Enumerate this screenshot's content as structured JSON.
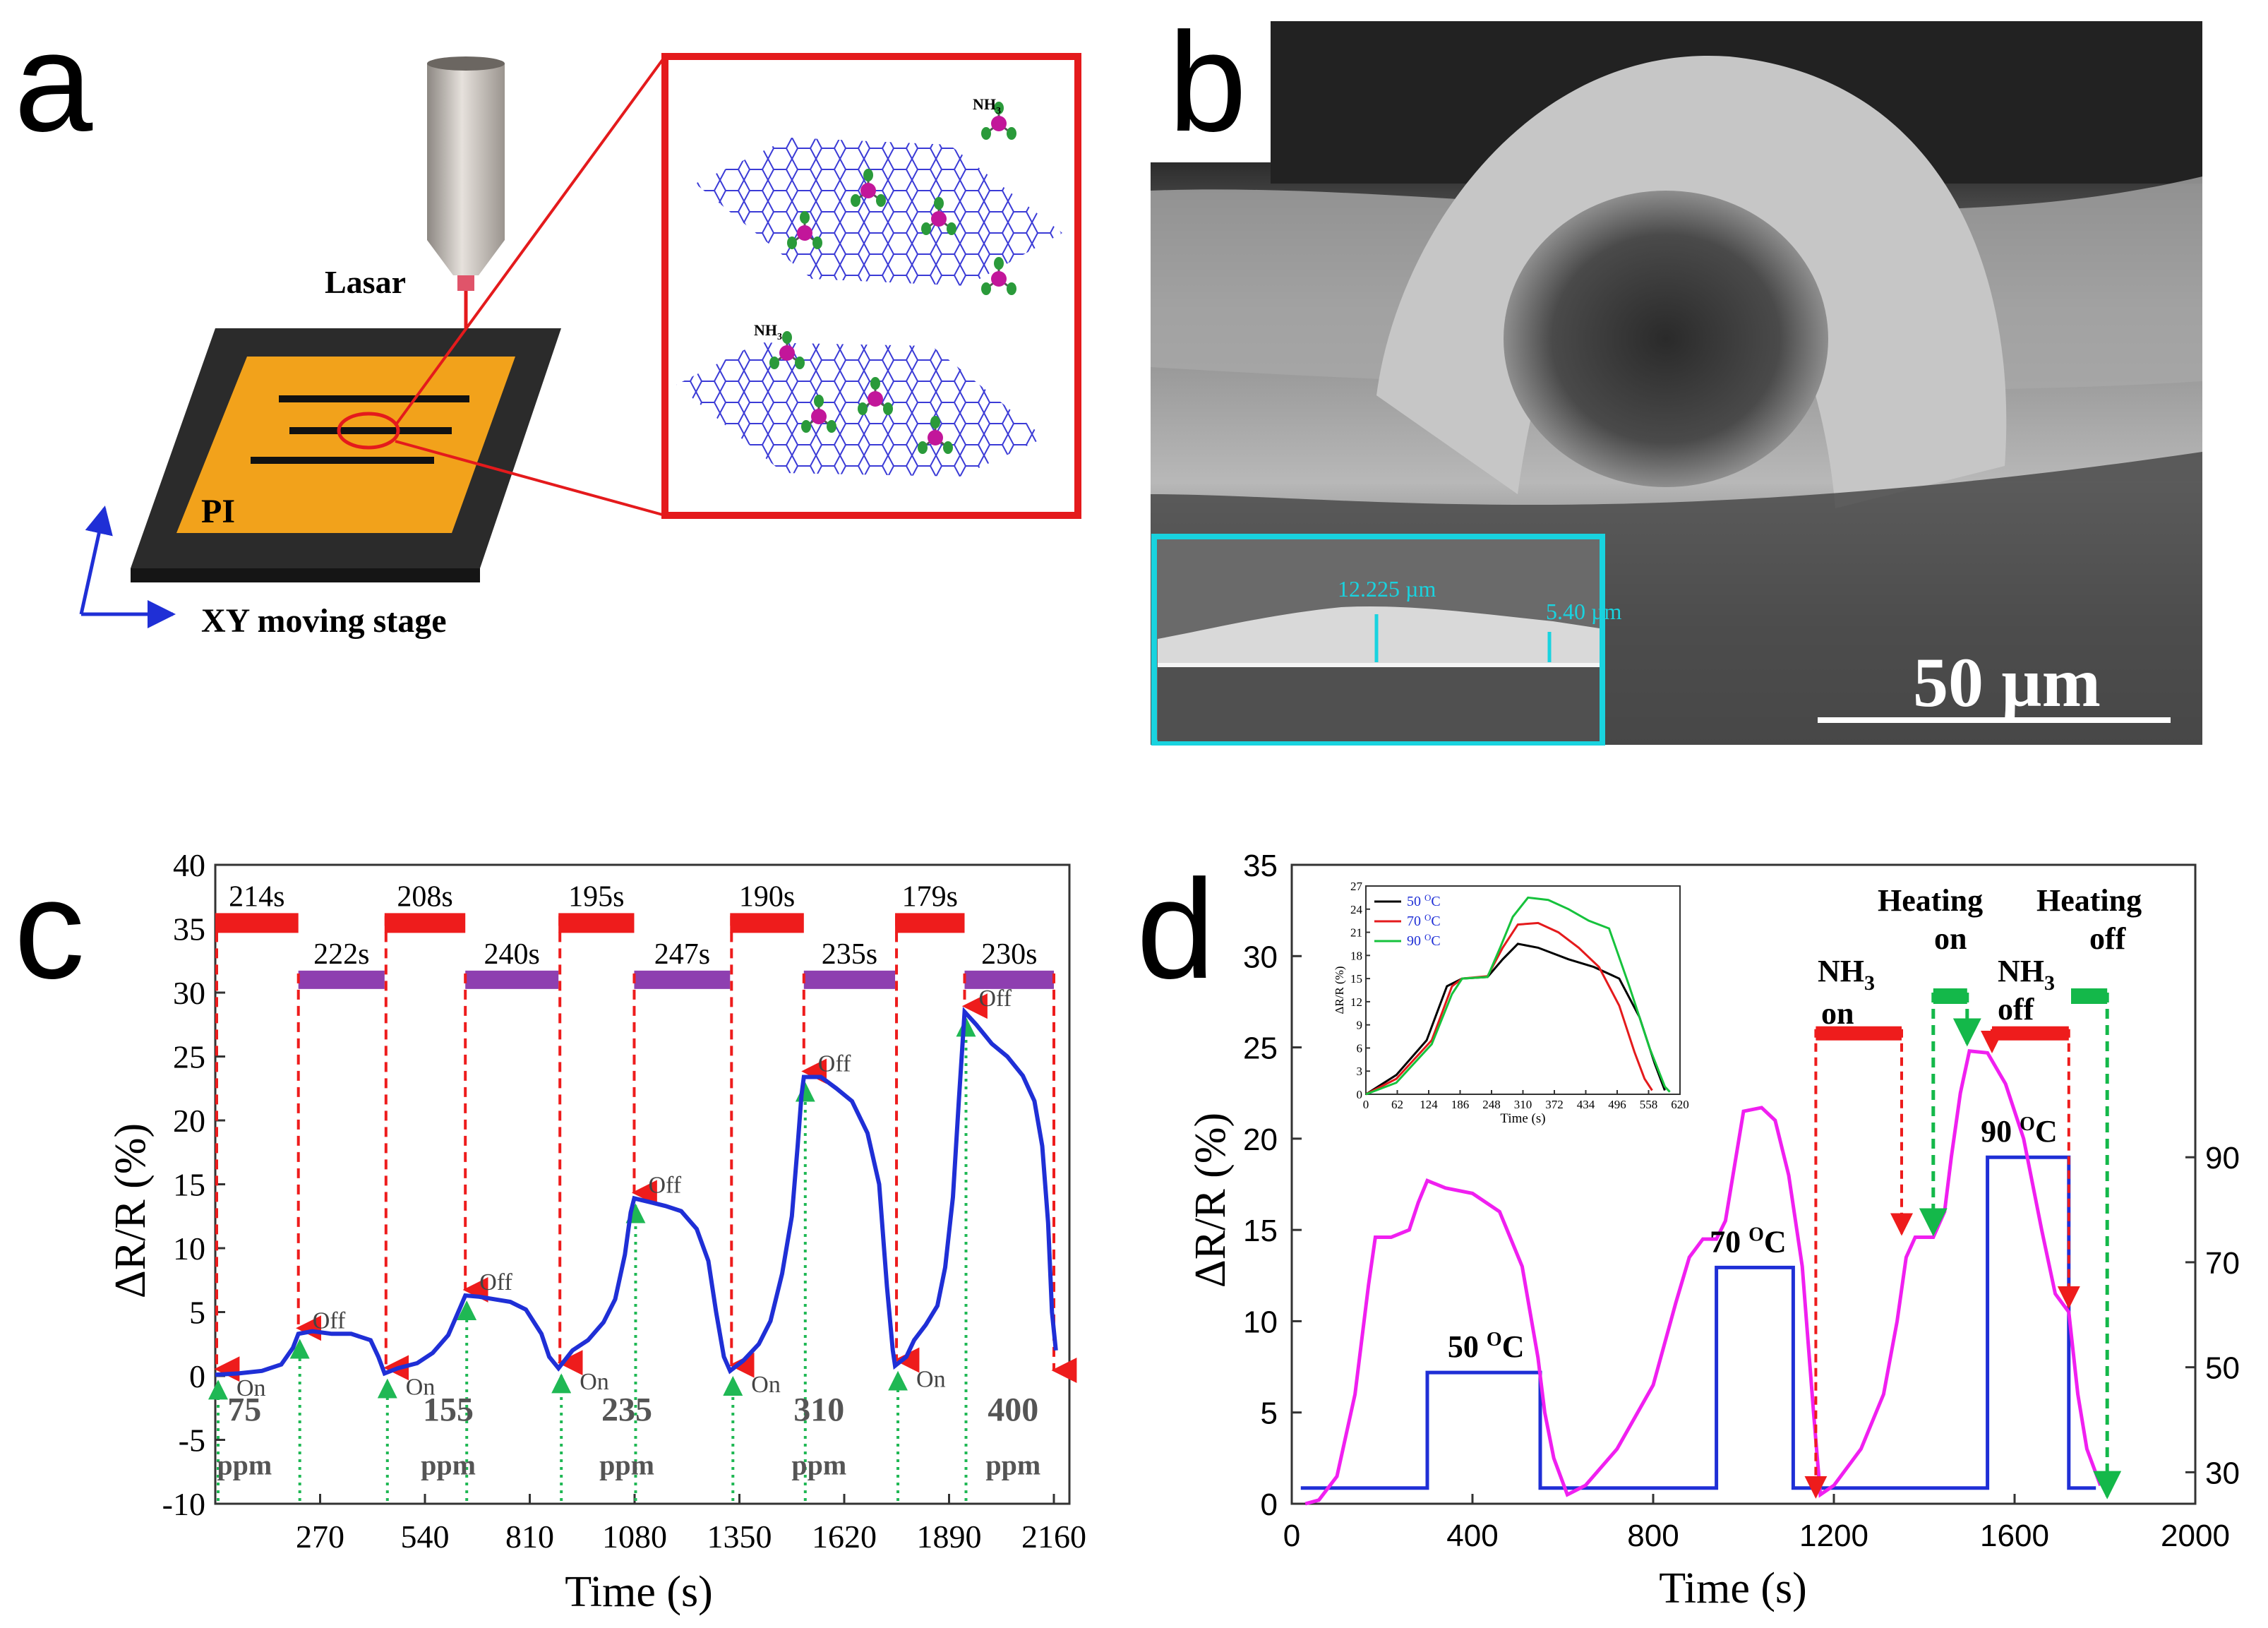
{
  "panel_labels": {
    "a": "a",
    "b": "b",
    "c": "c",
    "d": "d"
  },
  "panel_a": {
    "laser_label": "Lasar",
    "substrate_label": "PI",
    "stage_label": "XY moving stage",
    "molecule_label": "NH",
    "molecule_subscript": "3",
    "molecule_label_2": "NH",
    "molecule_subscript_2": "3",
    "colors": {
      "substrate": "#f2a21b",
      "frame": "#2b2b2b",
      "zoom_box": "#e41a1c",
      "graphene": "#3b3bd6",
      "molecule_core": "#c2169a",
      "molecule_h": "#2a9a3a"
    }
  },
  "panel_b": {
    "scale_bar_label": "50 µm",
    "inset_thickness_1": "12.225 µm",
    "inset_thickness_2": "5.40 µm",
    "colors": {
      "inset_border": "#19d3df"
    }
  },
  "panel_c": {
    "ylabel": "ΔR/R  (%)",
    "xlabel": "Time (s)",
    "on_label": "On",
    "off_label": "Off",
    "ppm_unit": "ppm",
    "colors": {
      "curve": "#1f2fd6",
      "exposure_bar": "#ee1c1c",
      "recovery_bar": "#8e3fb0",
      "on_arrow": "#1fb854",
      "off_arrow": "#ee1c1c"
    }
  },
  "panel_d": {
    "ylabel": "ΔR/R  (%)",
    "xlabel": "Time (s)",
    "nh3_on": [
      "NH",
      "3",
      "on"
    ],
    "nh3_off": [
      "NH",
      "3",
      "off"
    ],
    "heating_on": [
      "Heating",
      "on"
    ],
    "heating_off": [
      "Heating",
      "off"
    ],
    "colors": {
      "response": "#f01ff0",
      "temperature": "#1f2fd6",
      "nh3_bar": "#ee1c1c",
      "heating_bar": "#14b84a"
    }
  },
  "chart_data": [
    {
      "id": "c",
      "type": "line",
      "xlabel": "Time (s)",
      "ylabel": "ΔR/R  (%)",
      "xlim": [
        0,
        2200
      ],
      "ylim": [
        -10,
        40
      ],
      "xticks": [
        270,
        540,
        810,
        1080,
        1350,
        1620,
        1890,
        2160
      ],
      "yticks": [
        -10,
        -5,
        0,
        5,
        10,
        15,
        20,
        25,
        30,
        35,
        40
      ],
      "concentrations": [
        {
          "value": "75",
          "x": 75
        },
        {
          "value": "155",
          "x": 600
        },
        {
          "value": "235",
          "x": 1060
        },
        {
          "value": "310",
          "x": 1555
        },
        {
          "value": "400",
          "x": 2055
        }
      ],
      "exposure_bars": [
        {
          "label": "214s",
          "start": 0,
          "end": 214
        },
        {
          "label": "208s",
          "start": 436,
          "end": 644
        },
        {
          "label": "195s",
          "start": 884,
          "end": 1079
        },
        {
          "label": "190s",
          "start": 1326,
          "end": 1516
        },
        {
          "label": "179s",
          "start": 1751,
          "end": 1930
        }
      ],
      "recovery_bars": [
        {
          "label": "222s",
          "start": 214,
          "end": 436
        },
        {
          "label": "240s",
          "start": 644,
          "end": 884
        },
        {
          "label": "247s",
          "start": 1079,
          "end": 1326
        },
        {
          "label": "235s",
          "start": 1516,
          "end": 1751
        },
        {
          "label": "230s",
          "start": 1930,
          "end": 2160
        }
      ],
      "on_times": [
        0,
        436,
        884,
        1326,
        1751
      ],
      "off_times": [
        214,
        644,
        1079,
        1516,
        1930
      ],
      "series": [
        {
          "points": [
            [
              0,
              0.1
            ],
            [
              60,
              0.2
            ],
            [
              120,
              0.4
            ],
            [
              170,
              0.9
            ],
            [
              200,
              2.2
            ],
            [
              214,
              3.3
            ],
            [
              250,
              3.5
            ],
            [
              300,
              3.3
            ],
            [
              350,
              3.3
            ],
            [
              400,
              2.8
            ],
            [
              420,
              1.5
            ],
            [
              436,
              0.2
            ],
            [
              470,
              0.6
            ],
            [
              520,
              1.0
            ],
            [
              560,
              1.8
            ],
            [
              600,
              3.2
            ],
            [
              630,
              5.3
            ],
            [
              644,
              6.3
            ],
            [
              680,
              6.2
            ],
            [
              720,
              6.0
            ],
            [
              760,
              5.8
            ],
            [
              800,
              5.2
            ],
            [
              840,
              3.3
            ],
            [
              860,
              1.5
            ],
            [
              884,
              0.6
            ],
            [
              920,
              2.0
            ],
            [
              960,
              2.8
            ],
            [
              1000,
              4.2
            ],
            [
              1030,
              6.0
            ],
            [
              1055,
              9.5
            ],
            [
              1070,
              12.8
            ],
            [
              1079,
              13.9
            ],
            [
              1120,
              13.6
            ],
            [
              1160,
              13.3
            ],
            [
              1200,
              12.9
            ],
            [
              1240,
              11.5
            ],
            [
              1270,
              9.0
            ],
            [
              1290,
              5.0
            ],
            [
              1310,
              1.5
            ],
            [
              1326,
              0.4
            ],
            [
              1360,
              1.2
            ],
            [
              1400,
              2.5
            ],
            [
              1430,
              4.3
            ],
            [
              1460,
              8.0
            ],
            [
              1485,
              12.5
            ],
            [
              1500,
              18.0
            ],
            [
              1510,
              22.0
            ],
            [
              1516,
              23.4
            ],
            [
              1560,
              23.4
            ],
            [
              1600,
              22.5
            ],
            [
              1640,
              21.5
            ],
            [
              1680,
              19.0
            ],
            [
              1710,
              15.0
            ],
            [
              1730,
              7.0
            ],
            [
              1745,
              2.0
            ],
            [
              1751,
              0.8
            ],
            [
              1780,
              1.5
            ],
            [
              1800,
              2.8
            ],
            [
              1830,
              4.0
            ],
            [
              1860,
              5.5
            ],
            [
              1880,
              8.5
            ],
            [
              1900,
              14.0
            ],
            [
              1915,
              21.5
            ],
            [
              1930,
              28.5
            ],
            [
              1960,
              27.5
            ],
            [
              2000,
              26.0
            ],
            [
              2040,
              25.0
            ],
            [
              2080,
              23.5
            ],
            [
              2110,
              21.5
            ],
            [
              2130,
              18.0
            ],
            [
              2145,
              12.0
            ],
            [
              2155,
              5.0
            ],
            [
              2165,
              2.0
            ]
          ]
        }
      ]
    },
    {
      "id": "d",
      "type": "line",
      "xlabel": "Time (s)",
      "ylabel": "ΔR/R  (%)",
      "xlim": [
        0,
        2000
      ],
      "ylim": [
        0,
        35
      ],
      "xticks": [
        0,
        400,
        800,
        1200,
        1600,
        2000
      ],
      "yticks": [
        0,
        5,
        10,
        15,
        20,
        25,
        30,
        35
      ],
      "y2_ticks": [
        30,
        50,
        70,
        90
      ],
      "y2lim": [
        24,
        145.7
      ],
      "temperature_labels": [
        {
          "value": "50",
          "unit": "OC",
          "t": 430
        },
        {
          "value": "70",
          "unit": "OC",
          "t": 1010
        },
        {
          "value": "90",
          "unit": "OC",
          "t": 1610
        }
      ],
      "nh3_bars": [
        {
          "start": 1160,
          "end": 1350
        },
        {
          "start": 1550,
          "end": 1720
        }
      ],
      "heating_bars": [
        {
          "start": 1420,
          "end": 1495
        },
        {
          "start": 1725,
          "end": 1805
        }
      ],
      "series": [
        {
          "name": "response",
          "points": [
            [
              30,
              0
            ],
            [
              60,
              0.2
            ],
            [
              100,
              1.5
            ],
            [
              140,
              6.0
            ],
            [
              170,
              12.0
            ],
            [
              185,
              14.6
            ],
            [
              220,
              14.6
            ],
            [
              260,
              15.0
            ],
            [
              280,
              16.5
            ],
            [
              300,
              17.7
            ],
            [
              340,
              17.3
            ],
            [
              400,
              17.0
            ],
            [
              460,
              16.0
            ],
            [
              510,
              13.0
            ],
            [
              545,
              8.0
            ],
            [
              560,
              5.0
            ],
            [
              580,
              2.5
            ],
            [
              610,
              0.5
            ],
            [
              650,
              1.0
            ],
            [
              720,
              3.0
            ],
            [
              800,
              6.5
            ],
            [
              850,
              11.0
            ],
            [
              880,
              13.5
            ],
            [
              910,
              14.5
            ],
            [
              940,
              14.5
            ],
            [
              960,
              15.5
            ],
            [
              980,
              18.5
            ],
            [
              1000,
              21.5
            ],
            [
              1040,
              21.7
            ],
            [
              1070,
              21.0
            ],
            [
              1100,
              18.0
            ],
            [
              1130,
              13.0
            ],
            [
              1155,
              5.0
            ],
            [
              1170,
              0.5
            ],
            [
              1200,
              1.0
            ],
            [
              1260,
              3.0
            ],
            [
              1310,
              6.0
            ],
            [
              1340,
              10.0
            ],
            [
              1360,
              13.5
            ],
            [
              1380,
              14.6
            ],
            [
              1420,
              14.6
            ],
            [
              1445,
              16.0
            ],
            [
              1460,
              19.0
            ],
            [
              1480,
              22.5
            ],
            [
              1500,
              24.8
            ],
            [
              1540,
              24.7
            ],
            [
              1580,
              23.0
            ],
            [
              1620,
              20.0
            ],
            [
              1660,
              15.0
            ],
            [
              1690,
              11.5
            ],
            [
              1720,
              10.5
            ],
            [
              1740,
              6.0
            ],
            [
              1760,
              3.0
            ],
            [
              1790,
              1.0
            ]
          ]
        },
        {
          "name": "temperature",
          "axis": "right",
          "points": [
            [
              20,
              27
            ],
            [
              300,
              27
            ],
            [
              300,
              49
            ],
            [
              550,
              49
            ],
            [
              550,
              27
            ],
            [
              940,
              27
            ],
            [
              940,
              69
            ],
            [
              1110,
              69
            ],
            [
              1110,
              27
            ],
            [
              1540,
              27
            ],
            [
              1540,
              90
            ],
            [
              1720,
              90
            ],
            [
              1720,
              27
            ],
            [
              1780,
              27
            ]
          ]
        }
      ],
      "inset": {
        "type": "line",
        "xlabel": "Time (s)",
        "ylabel": "ΔR/R (%)",
        "xlim": [
          0,
          620
        ],
        "ylim": [
          0,
          27
        ],
        "xticks": [
          0,
          62,
          124,
          186,
          248,
          310,
          372,
          434,
          496,
          558,
          620
        ],
        "yticks": [
          0,
          3,
          6,
          9,
          12,
          15,
          18,
          21,
          24,
          27
        ],
        "series": [
          {
            "name": "50 OC",
            "color": "#000000",
            "points": [
              [
                0,
                0
              ],
              [
                60,
                2.5
              ],
              [
                120,
                7
              ],
              [
                160,
                14
              ],
              [
                190,
                15
              ],
              [
                240,
                15.2
              ],
              [
                270,
                17.5
              ],
              [
                300,
                19.5
              ],
              [
                340,
                19.0
              ],
              [
                400,
                17.5
              ],
              [
                450,
                16.5
              ],
              [
                500,
                15.0
              ],
              [
                540,
                10.0
              ],
              [
                570,
                4.0
              ],
              [
                590,
                0.5
              ]
            ]
          },
          {
            "name": "70 OC",
            "color": "#e41a1c",
            "points": [
              [
                0,
                0
              ],
              [
                60,
                2
              ],
              [
                130,
                7
              ],
              [
                170,
                14
              ],
              [
                190,
                15
              ],
              [
                240,
                15.3
              ],
              [
                270,
                19
              ],
              [
                300,
                22.0
              ],
              [
                340,
                22.2
              ],
              [
                380,
                21
              ],
              [
                420,
                19.0
              ],
              [
                460,
                16.5
              ],
              [
                500,
                11.5
              ],
              [
                530,
                5.5
              ],
              [
                550,
                2.0
              ],
              [
                565,
                0.5
              ]
            ]
          },
          {
            "name": "90 OC",
            "color": "#16c23c",
            "points": [
              [
                0,
                0
              ],
              [
                60,
                1.5
              ],
              [
                130,
                6.5
              ],
              [
                170,
                13
              ],
              [
                190,
                15
              ],
              [
                240,
                15.2
              ],
              [
                265,
                19
              ],
              [
                290,
                23
              ],
              [
                320,
                25.5
              ],
              [
                360,
                25.2
              ],
              [
                400,
                24.0
              ],
              [
                440,
                22.5
              ],
              [
                480,
                21.5
              ],
              [
                520,
                14.0
              ],
              [
                560,
                6.0
              ],
              [
                590,
                1.0
              ],
              [
                600,
                0.3
              ]
            ]
          }
        ]
      }
    }
  ]
}
